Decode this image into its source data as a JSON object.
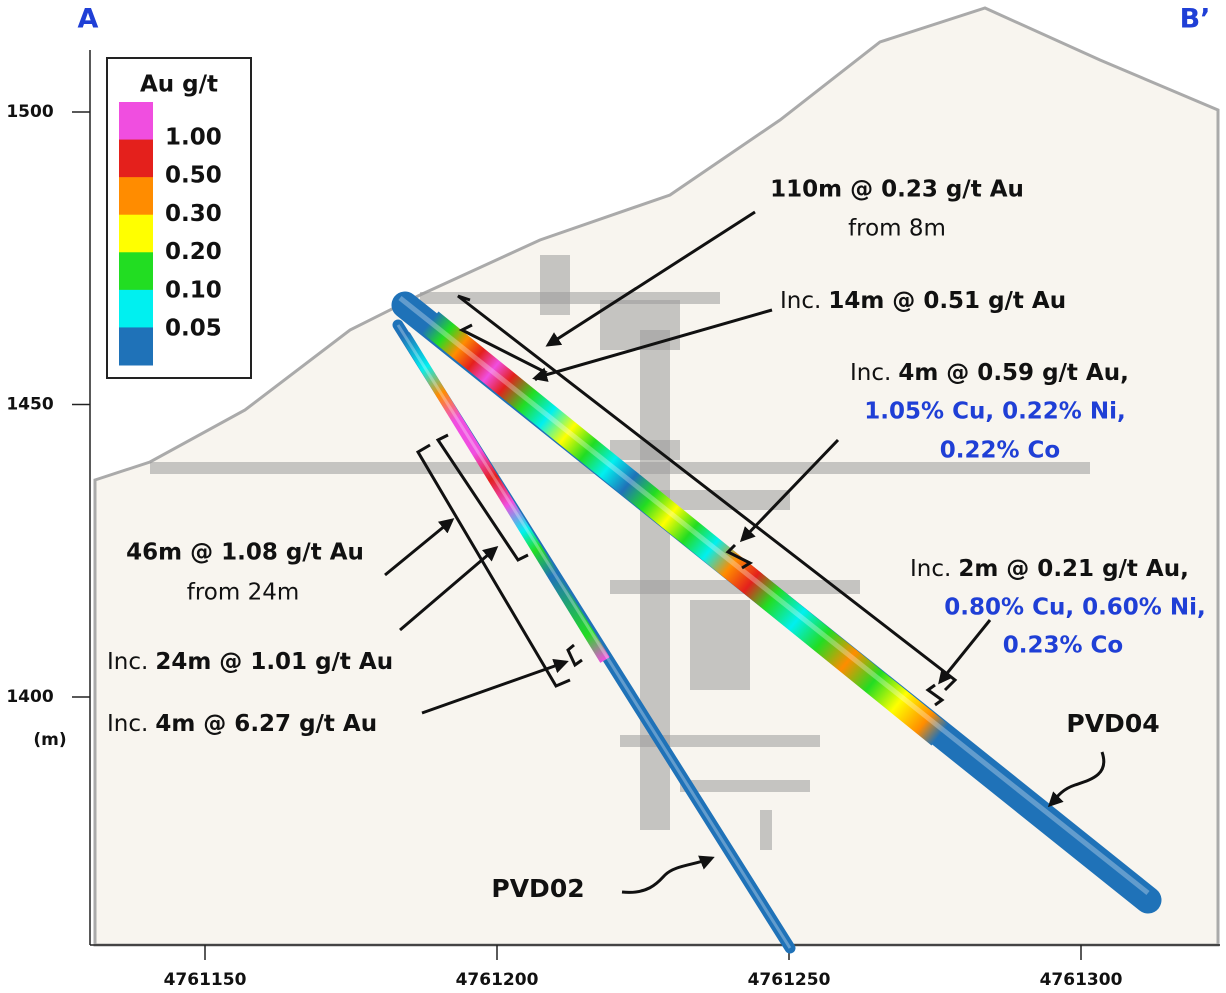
{
  "section": {
    "start_label": "A",
    "end_label": "B’"
  },
  "y_axis": {
    "unit": "(m)",
    "ticks": [
      1500,
      1450,
      1400
    ]
  },
  "x_axis": {
    "ticks": [
      4761150,
      4761200,
      4761250,
      4761300
    ]
  },
  "legend": {
    "title": "Au g/t",
    "colors": [
      "#f04ee0",
      "#e4201c",
      "#ff8c00",
      "#ffff00",
      "#22dd22",
      "#00f0f0",
      "#1f72b8"
    ],
    "labels": [
      "1.00",
      "0.50",
      "0.30",
      "0.20",
      "0.10",
      "0.05"
    ]
  },
  "annotations": [
    {
      "lines": [
        [
          "110m @ 0.23 g/t Au"
        ],
        [
          "from 8m"
        ]
      ]
    },
    {
      "lines": [
        [
          "Inc.",
          "14m @ 0.51 g/t Au"
        ]
      ]
    },
    {
      "lines": [
        [
          "Inc.",
          "4m @ 0.59 g/t Au,"
        ],
        [
          "1.05% Cu, 0.22% Ni,"
        ],
        [
          "0.22% Co"
        ]
      ]
    },
    {
      "lines": [
        [
          "Inc.",
          "2m @ 0.21 g/t Au,"
        ],
        [
          "0.80% Cu, 0.60% Ni,"
        ],
        [
          "0.23% Co"
        ]
      ]
    },
    {
      "lines": [
        [
          "46m @ 1.08 g/t Au"
        ],
        [
          "from 24m"
        ]
      ]
    },
    {
      "lines": [
        [
          "Inc.",
          "24m @ 1.01 g/t Au"
        ]
      ]
    },
    {
      "lines": [
        [
          "Inc.",
          "4m @ 6.27 g/t Au"
        ]
      ]
    }
  ],
  "holes": [
    "PVD04",
    "PVD02"
  ]
}
